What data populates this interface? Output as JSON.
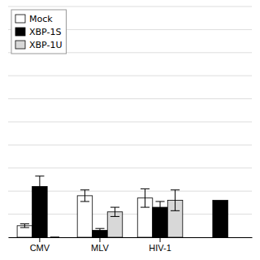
{
  "chart_data": {
    "type": "bar",
    "categories": [
      "CMV",
      "MLV",
      "HIV-1",
      null
    ],
    "series": [
      {
        "name": "Mock",
        "color": "white",
        "values": [
          0.5,
          1.8,
          1.7,
          null
        ],
        "errors": [
          0.08,
          0.25,
          0.4,
          null
        ]
      },
      {
        "name": "XBP-1S",
        "color": "black",
        "values": [
          2.2,
          0.3,
          1.3,
          1.6
        ],
        "errors": [
          0.45,
          0.08,
          0.25,
          null
        ]
      },
      {
        "name": "XBP-1U",
        "color": "#d8d8d8",
        "values": [
          0.0,
          1.1,
          1.6,
          null
        ],
        "errors": [
          0.0,
          0.2,
          0.45,
          null
        ]
      }
    ],
    "ylim": [
      0,
      10
    ],
    "yticks": [
      0,
      1,
      2,
      3,
      4,
      5,
      6,
      7,
      8,
      9,
      10
    ],
    "grid": true,
    "legend": "upper left",
    "tick_labels": "x"
  }
}
